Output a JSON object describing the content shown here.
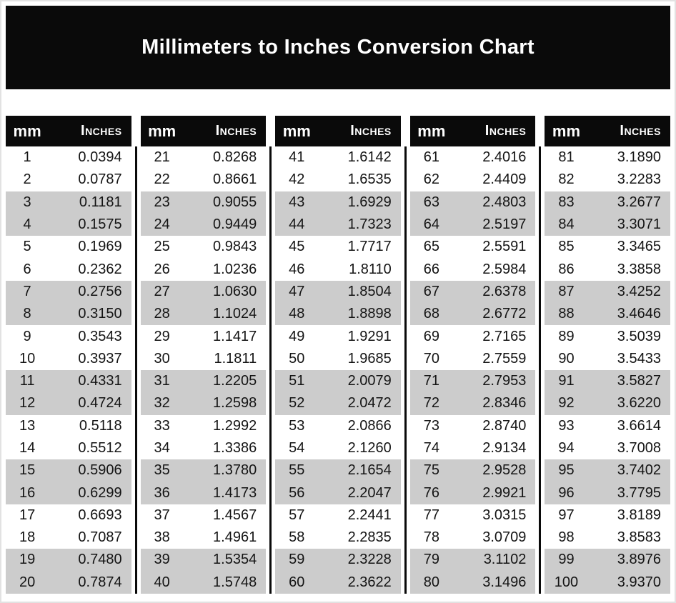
{
  "title": "Millimeters to Inches Conversion Chart",
  "header": {
    "mm_label": "mm",
    "inches_label": "Inches"
  },
  "colors": {
    "banner_black": "#0a0a0a",
    "stripe_gray": "#cccccc",
    "text_dark": "#141414",
    "text_white": "#ffffff"
  },
  "tables": [
    {
      "rows": [
        {
          "mm": "1",
          "in": "0.0394"
        },
        {
          "mm": "2",
          "in": "0.0787"
        },
        {
          "mm": "3",
          "in": "0.1181"
        },
        {
          "mm": "4",
          "in": "0.1575"
        },
        {
          "mm": "5",
          "in": "0.1969"
        },
        {
          "mm": "6",
          "in": "0.2362"
        },
        {
          "mm": "7",
          "in": "0.2756"
        },
        {
          "mm": "8",
          "in": "0.3150"
        },
        {
          "mm": "9",
          "in": "0.3543"
        },
        {
          "mm": "10",
          "in": "0.3937"
        },
        {
          "mm": "11",
          "in": "0.4331"
        },
        {
          "mm": "12",
          "in": "0.4724"
        },
        {
          "mm": "13",
          "in": "0.5118"
        },
        {
          "mm": "14",
          "in": "0.5512"
        },
        {
          "mm": "15",
          "in": "0.5906"
        },
        {
          "mm": "16",
          "in": "0.6299"
        },
        {
          "mm": "17",
          "in": "0.6693"
        },
        {
          "mm": "18",
          "in": "0.7087"
        },
        {
          "mm": "19",
          "in": "0.7480"
        },
        {
          "mm": "20",
          "in": "0.7874"
        }
      ]
    },
    {
      "rows": [
        {
          "mm": "21",
          "in": "0.8268"
        },
        {
          "mm": "22",
          "in": "0.8661"
        },
        {
          "mm": "23",
          "in": "0.9055"
        },
        {
          "mm": "24",
          "in": "0.9449"
        },
        {
          "mm": "25",
          "in": "0.9843"
        },
        {
          "mm": "26",
          "in": "1.0236"
        },
        {
          "mm": "27",
          "in": "1.0630"
        },
        {
          "mm": "28",
          "in": "1.1024"
        },
        {
          "mm": "29",
          "in": "1.1417"
        },
        {
          "mm": "30",
          "in": "1.1811"
        },
        {
          "mm": "31",
          "in": "1.2205"
        },
        {
          "mm": "32",
          "in": "1.2598"
        },
        {
          "mm": "33",
          "in": "1.2992"
        },
        {
          "mm": "34",
          "in": "1.3386"
        },
        {
          "mm": "35",
          "in": "1.3780"
        },
        {
          "mm": "36",
          "in": "1.4173"
        },
        {
          "mm": "37",
          "in": "1.4567"
        },
        {
          "mm": "38",
          "in": "1.4961"
        },
        {
          "mm": "39",
          "in": "1.5354"
        },
        {
          "mm": "40",
          "in": "1.5748"
        }
      ]
    },
    {
      "rows": [
        {
          "mm": "41",
          "in": "1.6142"
        },
        {
          "mm": "42",
          "in": "1.6535"
        },
        {
          "mm": "43",
          "in": "1.6929"
        },
        {
          "mm": "44",
          "in": "1.7323"
        },
        {
          "mm": "45",
          "in": "1.7717"
        },
        {
          "mm": "46",
          "in": "1.8110"
        },
        {
          "mm": "47",
          "in": "1.8504"
        },
        {
          "mm": "48",
          "in": "1.8898"
        },
        {
          "mm": "49",
          "in": "1.9291"
        },
        {
          "mm": "50",
          "in": "1.9685"
        },
        {
          "mm": "51",
          "in": "2.0079"
        },
        {
          "mm": "52",
          "in": "2.0472"
        },
        {
          "mm": "53",
          "in": "2.0866"
        },
        {
          "mm": "54",
          "in": "2.1260"
        },
        {
          "mm": "55",
          "in": "2.1654"
        },
        {
          "mm": "56",
          "in": "2.2047"
        },
        {
          "mm": "57",
          "in": "2.2441"
        },
        {
          "mm": "58",
          "in": "2.2835"
        },
        {
          "mm": "59",
          "in": "2.3228"
        },
        {
          "mm": "60",
          "in": "2.3622"
        }
      ]
    },
    {
      "rows": [
        {
          "mm": "61",
          "in": "2.4016"
        },
        {
          "mm": "62",
          "in": "2.4409"
        },
        {
          "mm": "63",
          "in": "2.4803"
        },
        {
          "mm": "64",
          "in": "2.5197"
        },
        {
          "mm": "65",
          "in": "2.5591"
        },
        {
          "mm": "66",
          "in": "2.5984"
        },
        {
          "mm": "67",
          "in": "2.6378"
        },
        {
          "mm": "68",
          "in": "2.6772"
        },
        {
          "mm": "69",
          "in": "2.7165"
        },
        {
          "mm": "70",
          "in": "2.7559"
        },
        {
          "mm": "71",
          "in": "2.7953"
        },
        {
          "mm": "72",
          "in": "2.8346"
        },
        {
          "mm": "73",
          "in": "2.8740"
        },
        {
          "mm": "74",
          "in": "2.9134"
        },
        {
          "mm": "75",
          "in": "2.9528"
        },
        {
          "mm": "76",
          "in": "2.9921"
        },
        {
          "mm": "77",
          "in": "3.0315"
        },
        {
          "mm": "78",
          "in": "3.0709"
        },
        {
          "mm": "79",
          "in": "3.1102"
        },
        {
          "mm": "80",
          "in": "3.1496"
        }
      ]
    },
    {
      "rows": [
        {
          "mm": "81",
          "in": "3.1890"
        },
        {
          "mm": "82",
          "in": "3.2283"
        },
        {
          "mm": "83",
          "in": "3.2677"
        },
        {
          "mm": "84",
          "in": "3.3071"
        },
        {
          "mm": "85",
          "in": "3.3465"
        },
        {
          "mm": "86",
          "in": "3.3858"
        },
        {
          "mm": "87",
          "in": "3.4252"
        },
        {
          "mm": "88",
          "in": "3.4646"
        },
        {
          "mm": "89",
          "in": "3.5039"
        },
        {
          "mm": "90",
          "in": "3.5433"
        },
        {
          "mm": "91",
          "in": "3.5827"
        },
        {
          "mm": "92",
          "in": "3.6220"
        },
        {
          "mm": "93",
          "in": "3.6614"
        },
        {
          "mm": "94",
          "in": "3.7008"
        },
        {
          "mm": "95",
          "in": "3.7402"
        },
        {
          "mm": "96",
          "in": "3.7795"
        },
        {
          "mm": "97",
          "in": "3.8189"
        },
        {
          "mm": "98",
          "in": "3.8583"
        },
        {
          "mm": "99",
          "in": "3.8976"
        },
        {
          "mm": "100",
          "in": "3.9370"
        }
      ]
    }
  ]
}
